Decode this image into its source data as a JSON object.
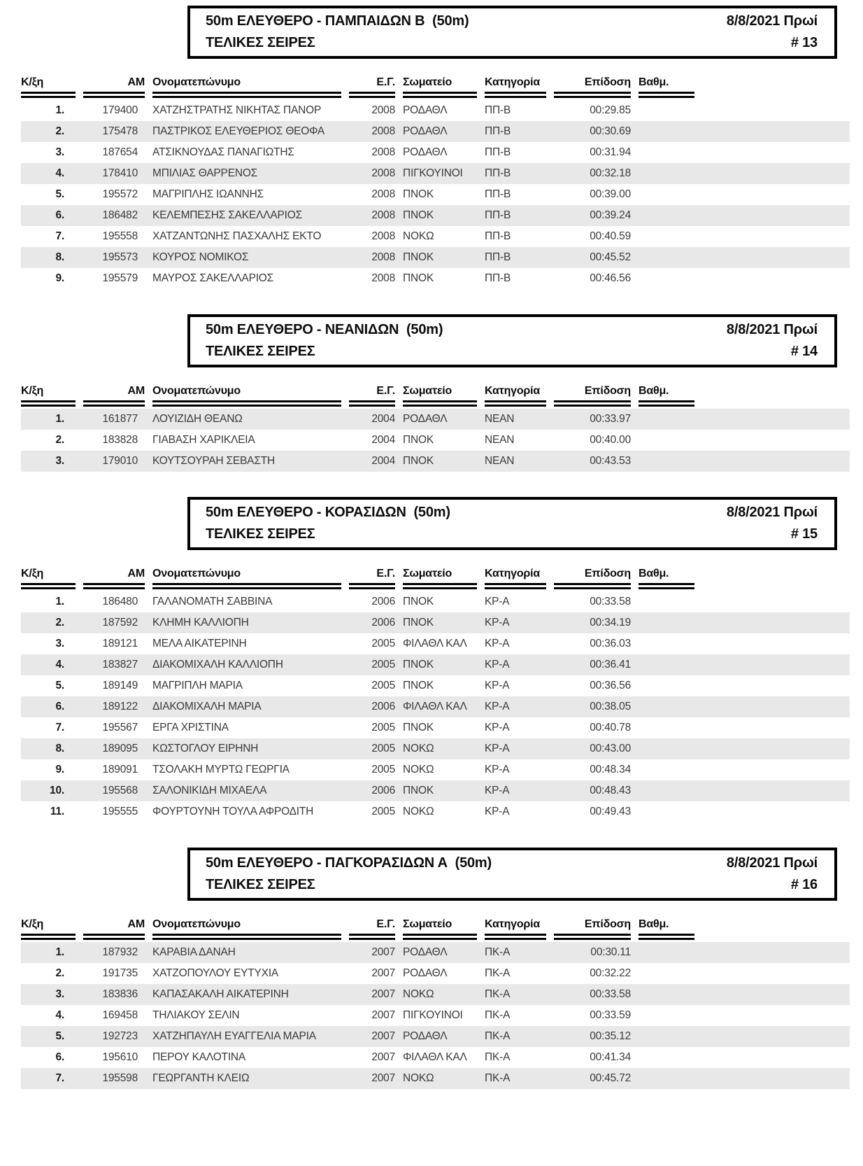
{
  "columns": [
    "Κ/ξη",
    "ΑΜ",
    "Ονοματεπώνυμο",
    "Ε.Γ.",
    "Σωματείο",
    "Κατηγορία",
    "Επίδοση",
    "Βαθμ."
  ],
  "colors": {
    "stripe": "#e8e8e8",
    "border": "#000000",
    "text": "#3a3a3a"
  },
  "sections": [
    {
      "title": "50m ΕΛΕΥΘΕΡΟ - ΠΑΜΠΑΙΔΩΝ Β  (50m)",
      "subtitle": "ΤΕΛΙΚΕΣ ΣΕΙΡΕΣ",
      "datetime": "8/8/2021 Πρωί",
      "number": "# 13",
      "rows": [
        {
          "rank": "1.",
          "am": "179400",
          "name": "ΧΑΤΖΗΣΤΡΑΤΗΣ ΝΙΚΗΤΑΣ ΠΑΝΟΡ",
          "eg": "2008",
          "club": "ΡΟΔΑΘΛ",
          "category": "ΠΠ-Β",
          "time": "00:29.85",
          "points": ""
        },
        {
          "rank": "2.",
          "am": "175478",
          "name": "ΠΑΣΤΡΙΚΟΣ ΕΛΕΥΘΕΡΙΟΣ ΘΕΟΦΑ",
          "eg": "2008",
          "club": "ΡΟΔΑΘΛ",
          "category": "ΠΠ-Β",
          "time": "00:30.69",
          "points": ""
        },
        {
          "rank": "3.",
          "am": "187654",
          "name": "ΑΤΣΙΚΝΟΥΔΑΣ ΠΑΝΑΓΙΩΤΗΣ",
          "eg": "2008",
          "club": "ΡΟΔΑΘΛ",
          "category": "ΠΠ-Β",
          "time": "00:31.94",
          "points": ""
        },
        {
          "rank": "4.",
          "am": "178410",
          "name": "ΜΠΙΛΙΑΣ ΘΑΡΡΕΝΟΣ",
          "eg": "2008",
          "club": "ΠΙΓΚΟΥΙΝΟΙ",
          "category": "ΠΠ-Β",
          "time": "00:32.18",
          "points": ""
        },
        {
          "rank": "5.",
          "am": "195572",
          "name": "ΜΑΓΡΙΠΛΗΣ ΙΩΑΝΝΗΣ",
          "eg": "2008",
          "club": "ΠΝΟΚ",
          "category": "ΠΠ-Β",
          "time": "00:39.00",
          "points": ""
        },
        {
          "rank": "6.",
          "am": "186482",
          "name": "ΚΕΛΕΜΠΕΣΗΣ ΣΑΚΕΛΛΑΡΙΟΣ",
          "eg": "2008",
          "club": "ΠΝΟΚ",
          "category": "ΠΠ-Β",
          "time": "00:39.24",
          "points": ""
        },
        {
          "rank": "7.",
          "am": "195558",
          "name": "ΧΑΤΖΑΝΤΩΝΗΣ ΠΑΣΧΑΛΗΣ ΕΚΤΟ",
          "eg": "2008",
          "club": "ΝΟΚΩ",
          "category": "ΠΠ-Β",
          "time": "00:40.59",
          "points": ""
        },
        {
          "rank": "8.",
          "am": "195573",
          "name": "ΚΟΥΡΟΣ ΝΟΜΙΚΟΣ",
          "eg": "2008",
          "club": "ΠΝΟΚ",
          "category": "ΠΠ-Β",
          "time": "00:45.52",
          "points": ""
        },
        {
          "rank": "9.",
          "am": "195579",
          "name": "ΜΑΥΡΟΣ ΣΑΚΕΛΛΑΡΙΟΣ",
          "eg": "2008",
          "club": "ΠΝΟΚ",
          "category": "ΠΠ-Β",
          "time": "00:46.56",
          "points": ""
        }
      ]
    },
    {
      "title": "50m ΕΛΕΥΘΕΡΟ - ΝΕΑΝΙΔΩΝ  (50m)",
      "subtitle": "ΤΕΛΙΚΕΣ ΣΕΙΡΕΣ",
      "datetime": "8/8/2021 Πρωί",
      "number": "# 14",
      "rows": [
        {
          "rank": "1.",
          "am": "161877",
          "name": "ΛΟΥΙΖΙΔΗ ΘΕΑΝΩ",
          "eg": "2004",
          "club": "ΡΟΔΑΘΛ",
          "category": "ΝΕΑΝ",
          "time": "00:33.97",
          "points": ""
        },
        {
          "rank": "2.",
          "am": "183828",
          "name": "ΓΙΑΒΑΣΗ ΧΑΡΙΚΛΕΙΑ",
          "eg": "2004",
          "club": "ΠΝΟΚ",
          "category": "ΝΕΑΝ",
          "time": "00:40.00",
          "points": ""
        },
        {
          "rank": "3.",
          "am": "179010",
          "name": "ΚΟΥΤΣΟΥΡΑΗ ΣΕΒΑΣΤΗ",
          "eg": "2004",
          "club": "ΠΝΟΚ",
          "category": "ΝΕΑΝ",
          "time": "00:43.53",
          "points": ""
        }
      ]
    },
    {
      "title": "50m ΕΛΕΥΘΕΡΟ - ΚΟΡΑΣΙΔΩΝ  (50m)",
      "subtitle": "ΤΕΛΙΚΕΣ ΣΕΙΡΕΣ",
      "datetime": "8/8/2021 Πρωί",
      "number": "# 15",
      "rows": [
        {
          "rank": "1.",
          "am": "186480",
          "name": "ΓΑΛΑΝΟΜΑΤΗ ΣΑΒΒΙΝΑ",
          "eg": "2006",
          "club": "ΠΝΟΚ",
          "category": "ΚΡ-Α",
          "time": "00:33.58",
          "points": ""
        },
        {
          "rank": "2.",
          "am": "187592",
          "name": "ΚΛΗΜΗ ΚΑΛΛΙΟΠΗ",
          "eg": "2006",
          "club": "ΠΝΟΚ",
          "category": "ΚΡ-Α",
          "time": "00:34.19",
          "points": ""
        },
        {
          "rank": "3.",
          "am": "189121",
          "name": "ΜΕΛΑ ΑΙΚΑΤΕΡΙΝΗ",
          "eg": "2005",
          "club": "ΦΙΛΑΘΛ ΚΑΛ",
          "category": "ΚΡ-Α",
          "time": "00:36.03",
          "points": ""
        },
        {
          "rank": "4.",
          "am": "183827",
          "name": "ΔΙΑΚΟΜΙΧΑΛΗ ΚΑΛΛΙΟΠΗ",
          "eg": "2005",
          "club": "ΠΝΟΚ",
          "category": "ΚΡ-Α",
          "time": "00:36.41",
          "points": ""
        },
        {
          "rank": "5.",
          "am": "189149",
          "name": "ΜΑΓΡΙΠΛΗ ΜΑΡΙΑ",
          "eg": "2005",
          "club": "ΠΝΟΚ",
          "category": "ΚΡ-Α",
          "time": "00:36.56",
          "points": ""
        },
        {
          "rank": "6.",
          "am": "189122",
          "name": "ΔΙΑΚΟΜΙΧΑΛΗ ΜΑΡΙΑ",
          "eg": "2006",
          "club": "ΦΙΛΑΘΛ ΚΑΛ",
          "category": "ΚΡ-Α",
          "time": "00:38.05",
          "points": ""
        },
        {
          "rank": "7.",
          "am": "195567",
          "name": "ΕΡΓΑ ΧΡΙΣΤΙΝΑ",
          "eg": "2005",
          "club": "ΠΝΟΚ",
          "category": "ΚΡ-Α",
          "time": "00:40.78",
          "points": ""
        },
        {
          "rank": "8.",
          "am": "189095",
          "name": "ΚΩΣΤΟΓΛΟΥ ΕΙΡΗΝΗ",
          "eg": "2005",
          "club": "ΝΟΚΩ",
          "category": "ΚΡ-Α",
          "time": "00:43.00",
          "points": ""
        },
        {
          "rank": "9.",
          "am": "189091",
          "name": "ΤΣΟΛΑΚΗ ΜΥΡΤΩ ΓΕΩΡΓΙΑ",
          "eg": "2005",
          "club": "ΝΟΚΩ",
          "category": "ΚΡ-Α",
          "time": "00:48.34",
          "points": ""
        },
        {
          "rank": "10.",
          "am": "195568",
          "name": "ΣΑΛΟΝΙΚΙΔΗ ΜΙΧΑΕΛΑ",
          "eg": "2006",
          "club": "ΠΝΟΚ",
          "category": "ΚΡ-Α",
          "time": "00:48.43",
          "points": ""
        },
        {
          "rank": "11.",
          "am": "195555",
          "name": "ΦΟΥΡΤΟΥΝΗ ΤΟΥΛΑ ΑΦΡΟΔΙΤΗ",
          "eg": "2005",
          "club": "ΝΟΚΩ",
          "category": "ΚΡ-Α",
          "time": "00:49.43",
          "points": ""
        }
      ]
    },
    {
      "title": "50m ΕΛΕΥΘΕΡΟ - ΠΑΓΚΟΡΑΣΙΔΩΝ Α  (50m)",
      "subtitle": "ΤΕΛΙΚΕΣ ΣΕΙΡΕΣ",
      "datetime": "8/8/2021 Πρωί",
      "number": "# 16",
      "rows": [
        {
          "rank": "1.",
          "am": "187932",
          "name": "ΚΑΡΑΒΙΑ ΔΑΝΑΗ",
          "eg": "2007",
          "club": "ΡΟΔΑΘΛ",
          "category": "ΠΚ-Α",
          "time": "00:30.11",
          "points": ""
        },
        {
          "rank": "2.",
          "am": "191735",
          "name": "ΧΑΤΖΟΠΟΥΛΟΥ ΕΥΤΥΧΙΑ",
          "eg": "2007",
          "club": "ΡΟΔΑΘΛ",
          "category": "ΠΚ-Α",
          "time": "00:32.22",
          "points": ""
        },
        {
          "rank": "3.",
          "am": "183836",
          "name": "ΚΑΠΑΣΑΚΑΛΗ ΑΙΚΑΤΕΡΙΝΗ",
          "eg": "2007",
          "club": "ΝΟΚΩ",
          "category": "ΠΚ-Α",
          "time": "00:33.58",
          "points": ""
        },
        {
          "rank": "4.",
          "am": "169458",
          "name": "ΤΗΛΙΑΚΟΥ ΣΕΛΙΝ",
          "eg": "2007",
          "club": "ΠΙΓΚΟΥΙΝΟΙ",
          "category": "ΠΚ-Α",
          "time": "00:33.59",
          "points": ""
        },
        {
          "rank": "5.",
          "am": "192723",
          "name": "ΧΑΤΖΗΠΑΥΛΗ ΕΥΑΓΓΕΛΙΑ ΜΑΡΙΑ",
          "eg": "2007",
          "club": "ΡΟΔΑΘΛ",
          "category": "ΠΚ-Α",
          "time": "00:35.12",
          "points": ""
        },
        {
          "rank": "6.",
          "am": "195610",
          "name": "ΠΕΡΟΥ ΚΑΛΟΤΙΝΑ",
          "eg": "2007",
          "club": "ΦΙΛΑΘΛ ΚΑΛ",
          "category": "ΠΚ-Α",
          "time": "00:41.34",
          "points": ""
        },
        {
          "rank": "7.",
          "am": "195598",
          "name": "ΓΕΩΡΓΑΝΤΗ ΚΛΕΙΩ",
          "eg": "2007",
          "club": "ΝΟΚΩ",
          "category": "ΠΚ-Α",
          "time": "00:45.72",
          "points": ""
        }
      ]
    }
  ]
}
